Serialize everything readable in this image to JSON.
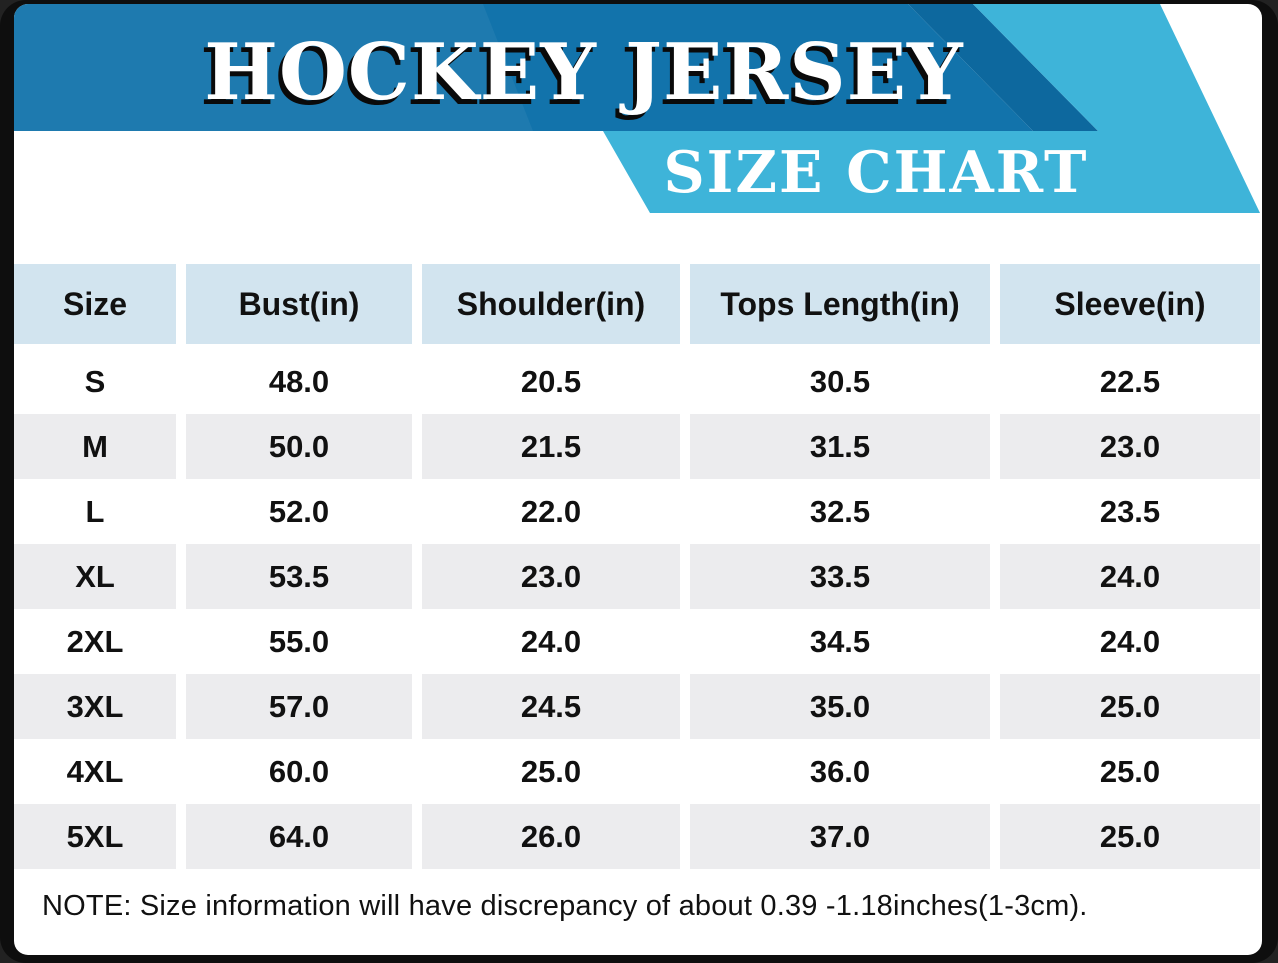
{
  "banner": {
    "title": "HOCKEY JERSEY",
    "subtitle": "SIZE CHART"
  },
  "table": {
    "columns": [
      "Size",
      "Bust(in)",
      "Shoulder(in)",
      "Tops Length(in)",
      "Sleeve(in)"
    ],
    "rows": [
      [
        "S",
        "48.0",
        "20.5",
        "30.5",
        "22.5"
      ],
      [
        "M",
        "50.0",
        "21.5",
        "31.5",
        "23.0"
      ],
      [
        "L",
        "52.0",
        "22.0",
        "32.5",
        "23.5"
      ],
      [
        "XL",
        "53.5",
        "23.0",
        "33.5",
        "24.0"
      ],
      [
        "2XL",
        "55.0",
        "24.0",
        "34.5",
        "24.0"
      ],
      [
        "3XL",
        "57.0",
        "24.5",
        "35.0",
        "25.0"
      ],
      [
        "4XL",
        "60.0",
        "25.0",
        "36.0",
        "25.0"
      ],
      [
        "5XL",
        "64.0",
        "26.0",
        "37.0",
        "25.0"
      ]
    ]
  },
  "note": "NOTE: Size information will have discrepancy of about 0.39 -1.18inches(1-3cm).",
  "colors": {
    "banner_blue": "#1273ab",
    "stripe_blue": "#0d689e",
    "ribbon_blue": "#3eb4d9",
    "header_cell": "#d2e4ef",
    "row_alt": "#ececee"
  },
  "chart_data": {
    "type": "table",
    "title": "HOCKEY JERSEY",
    "subtitle": "SIZE CHART",
    "columns": [
      "Size",
      "Bust(in)",
      "Shoulder(in)",
      "Tops Length(in)",
      "Sleeve(in)"
    ],
    "rows": [
      [
        "S",
        48.0,
        20.5,
        30.5,
        22.5
      ],
      [
        "M",
        50.0,
        21.5,
        31.5,
        23.0
      ],
      [
        "L",
        52.0,
        22.0,
        32.5,
        23.5
      ],
      [
        "XL",
        53.5,
        23.0,
        33.5,
        24.0
      ],
      [
        "2XL",
        55.0,
        24.0,
        34.5,
        24.0
      ],
      [
        "3XL",
        57.0,
        24.5,
        35.0,
        25.0
      ],
      [
        "4XL",
        60.0,
        25.0,
        36.0,
        25.0
      ],
      [
        "5XL",
        64.0,
        26.0,
        37.0,
        25.0
      ]
    ],
    "note": "NOTE: Size information will have discrepancy of about 0.39 -1.18inches(1-3cm).",
    "units": "inches"
  }
}
